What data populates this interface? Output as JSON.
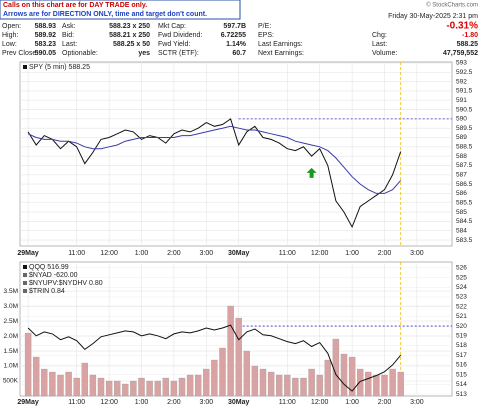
{
  "header": {
    "notice_1": "Calls on this chart are for DAY TRADE only.",
    "notice_2": "Arrows are for DIRECTION ONLY, time and target don't count.",
    "copyright": "© StockCharts.com",
    "date": "Friday  30-May-2025  2:31 pm",
    "change_pct": "-0.31%",
    "columns": [
      [
        [
          "Open:",
          "588.93"
        ],
        [
          "High:",
          "589.92"
        ],
        [
          "Low:",
          "583.23"
        ],
        [
          "Prev Close:",
          "590.05"
        ]
      ],
      [
        [
          "Ask:",
          "588.23 x 250"
        ],
        [
          "Bid:",
          "588.21 x 250"
        ],
        [
          "Last:",
          "588.25 x 50"
        ],
        [
          "Optionable:",
          "yes"
        ]
      ],
      [
        [
          "Mkt Cap:",
          "597.7B"
        ],
        [
          "Fwd Dividend:",
          "6.72255"
        ],
        [
          "Fwd Yield:",
          "1.14%"
        ],
        [
          "SCTR (ETF):",
          "60.7"
        ]
      ],
      [
        [
          "P/E:"
        ],
        [
          "EPS:"
        ],
        [
          "Last Earnings:"
        ],
        [
          "Next Earnings:"
        ]
      ],
      [
        [
          "Chg:",
          "-1.80"
        ],
        [
          "Last:",
          "588.25"
        ],
        [
          "Volume:",
          "47,759,552"
        ]
      ]
    ]
  },
  "chart_data": [
    {
      "type": "line",
      "y_axis_side": "right",
      "grid": true,
      "x": [
        0,
        3,
        6,
        9,
        12,
        15,
        18,
        21,
        24,
        27,
        30,
        33,
        36,
        39,
        42,
        45,
        48,
        51,
        54,
        57,
        60,
        63,
        66,
        69,
        72,
        75,
        78,
        81,
        84,
        87,
        90,
        93,
        96,
        99,
        102,
        105,
        108,
        111,
        114,
        117,
        120,
        123,
        126,
        129,
        132,
        135,
        138
      ],
      "xlim": [
        -3,
        157
      ],
      "xticks": [
        {
          "value": 0,
          "label": "29May"
        },
        {
          "value": 18,
          "label": "11:00"
        },
        {
          "value": 30,
          "label": "12:00"
        },
        {
          "value": 42,
          "label": "1:00"
        },
        {
          "value": 54,
          "label": "2:00"
        },
        {
          "value": 66,
          "label": "3:00"
        },
        {
          "value": 78,
          "label": "30May"
        },
        {
          "value": 96,
          "label": "11:00"
        },
        {
          "value": 108,
          "label": "12:00"
        },
        {
          "value": 120,
          "label": "1:00"
        },
        {
          "value": 132,
          "label": "2:00"
        },
        {
          "value": 144,
          "label": "3:00"
        }
      ],
      "ylim": [
        583.18,
        593.05
      ],
      "yticks": [
        583.5,
        584.0,
        584.5,
        585.0,
        585.5,
        586.0,
        586.5,
        587.0,
        587.5,
        588.0,
        588.5,
        589.0,
        589.5,
        590.0,
        590.5,
        591.0,
        591.5,
        592.0,
        592.5,
        593.0
      ],
      "reference_line": {
        "y": 590,
        "x_start": 78
      },
      "arrow": {
        "x": 105,
        "y": 587.1,
        "color": "#1a9a1a"
      },
      "series": [
        {
          "name": "SPY (5 min) 588.25",
          "color": "#111111",
          "values": [
            589.3,
            588.6,
            589.1,
            588.9,
            588.4,
            588.8,
            588.5,
            587.6,
            588.2,
            588.9,
            589.0,
            589.2,
            589.4,
            589.3,
            588.9,
            589.1,
            589.0,
            588.7,
            589.2,
            589.4,
            589.3,
            589.5,
            589.8,
            589.6,
            589.7,
            590.0,
            588.6,
            589.3,
            589.6,
            589.0,
            588.9,
            588.7,
            588.4,
            588.3,
            588.5,
            588.0,
            588.4,
            587.5,
            585.6,
            585.0,
            584.2,
            585.3,
            585.6,
            585.9,
            586.2,
            587.0,
            588.25
          ]
        },
        {
          "color": "#3a3aa8",
          "values": [
            589.2,
            589.0,
            588.9,
            588.9,
            588.8,
            588.8,
            588.7,
            588.5,
            588.4,
            588.4,
            588.5,
            588.6,
            588.8,
            588.9,
            589.0,
            589.0,
            589.0,
            589.0,
            589.0,
            589.1,
            589.1,
            589.2,
            589.3,
            589.4,
            589.5,
            589.6,
            589.5,
            589.4,
            589.4,
            589.3,
            589.2,
            589.1,
            589.0,
            588.8,
            588.7,
            588.6,
            588.5,
            588.3,
            587.9,
            587.4,
            586.9,
            586.5,
            586.2,
            586.0,
            586.0,
            586.2,
            586.7
          ]
        }
      ]
    },
    {
      "type": "bar",
      "y_axis_side": "left",
      "grid": true,
      "x": [
        0,
        3,
        6,
        9,
        12,
        15,
        18,
        21,
        24,
        27,
        30,
        33,
        36,
        39,
        42,
        45,
        48,
        51,
        54,
        57,
        60,
        63,
        66,
        69,
        72,
        75,
        78,
        81,
        84,
        87,
        90,
        93,
        96,
        99,
        102,
        105,
        108,
        111,
        114,
        117,
        120,
        123,
        126,
        129,
        132,
        135,
        138
      ],
      "xlim": [
        -3,
        157
      ],
      "xticks": [
        {
          "value": 0,
          "label": "29May"
        },
        {
          "value": 18,
          "label": "11:00"
        },
        {
          "value": 30,
          "label": "12:00"
        },
        {
          "value": 42,
          "label": "1:00"
        },
        {
          "value": 54,
          "label": "2:00"
        },
        {
          "value": 66,
          "label": "3:00"
        },
        {
          "value": 78,
          "label": "30May"
        },
        {
          "value": 96,
          "label": "11:00"
        },
        {
          "value": 108,
          "label": "12:00"
        },
        {
          "value": 120,
          "label": "1:00"
        },
        {
          "value": 132,
          "label": "2:00"
        },
        {
          "value": 144,
          "label": "3:00"
        }
      ],
      "ylim": [
        0,
        4470000
      ],
      "yticks": [
        {
          "value": 500000,
          "label": "500K"
        },
        {
          "value": 1000000,
          "label": "1.0M"
        },
        {
          "value": 1500000,
          "label": "1.5M"
        },
        {
          "value": 2000000,
          "label": "2.0M"
        },
        {
          "value": 2500000,
          "label": "2.5M"
        },
        {
          "value": 3000000,
          "label": "3.0M"
        },
        {
          "value": 3500000,
          "label": "3.5M"
        }
      ],
      "y2lim": [
        512.8,
        526.6
      ],
      "y2ticks": [
        513,
        514,
        515,
        516,
        517,
        518,
        519,
        520,
        521,
        522,
        523,
        524,
        525,
        526
      ],
      "reference_line": {
        "y": 520,
        "x_start": 78,
        "axis": "y2"
      },
      "other_indicators": [
        "$NYAD -620.00",
        "$NYUPV:$NYDHV 0.80",
        "$TRIN 0.84"
      ],
      "series": [
        {
          "name": "QQQ 516.99",
          "type": "line",
          "axis": "y2",
          "color": "#111111",
          "values": [
            519.8,
            519.0,
            519.4,
            519.2,
            518.6,
            518.9,
            518.5,
            517.6,
            518.2,
            518.9,
            519.1,
            519.3,
            519.5,
            519.4,
            519.0,
            519.2,
            519.0,
            518.7,
            519.2,
            519.4,
            519.3,
            519.5,
            519.8,
            519.6,
            519.8,
            520.1,
            518.6,
            519.4,
            519.7,
            519.1,
            519.0,
            518.7,
            518.4,
            518.2,
            518.5,
            517.9,
            518.3,
            517.2,
            515.0,
            514.0,
            513.3,
            514.3,
            514.6,
            514.9,
            515.3,
            516.0,
            517.0
          ]
        },
        {
          "type": "bar",
          "color": "#d9a3a3",
          "values": [
            2100000,
            1300000,
            900000,
            800000,
            700000,
            800000,
            600000,
            1100000,
            700000,
            600000,
            500000,
            500000,
            400000,
            500000,
            600000,
            500000,
            500000,
            600000,
            500000,
            600000,
            700000,
            700000,
            900000,
            1200000,
            1600000,
            3000000,
            2600000,
            1500000,
            1000000,
            900000,
            800000,
            700000,
            700000,
            600000,
            600000,
            900000,
            700000,
            1200000,
            1900000,
            1400000,
            1300000,
            900000,
            800000,
            700000,
            700000,
            900000,
            800000
          ]
        }
      ]
    }
  ]
}
